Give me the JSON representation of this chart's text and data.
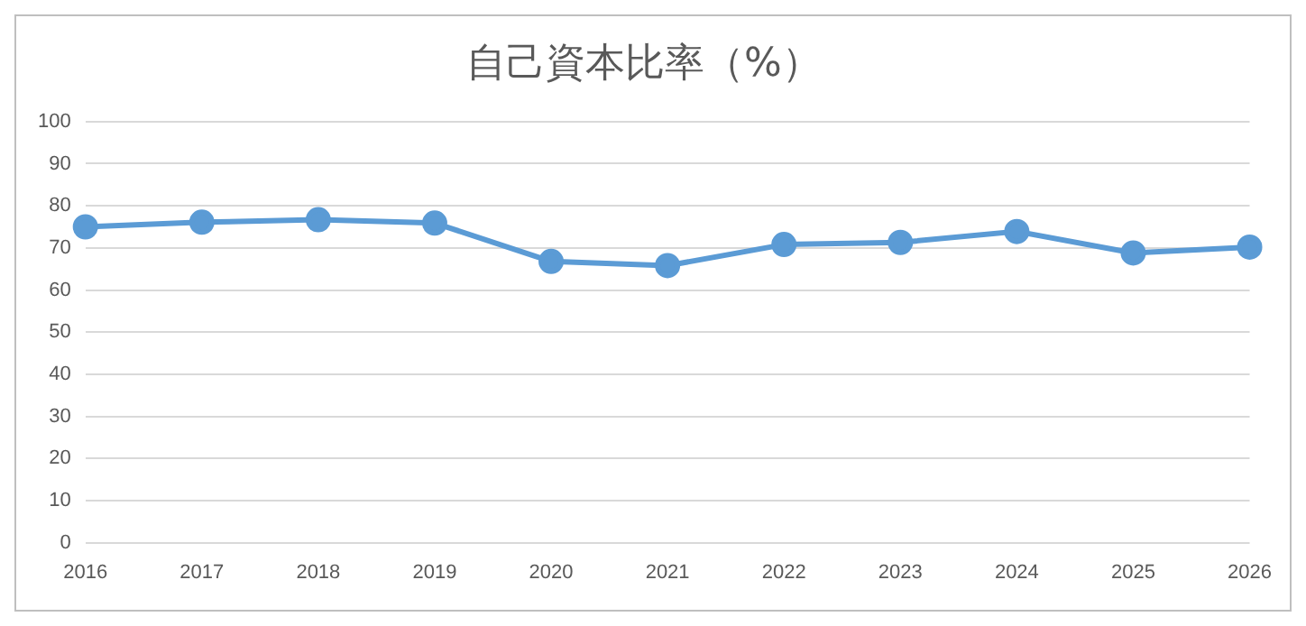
{
  "chart_data": {
    "type": "line",
    "title": "自己資本比率（%）",
    "categories": [
      "2016",
      "2017",
      "2018",
      "2019",
      "2020",
      "2021",
      "2022",
      "2023",
      "2024",
      "2025",
      "2026"
    ],
    "series": [
      {
        "color": "#5b9bd5",
        "values": [
          75.0,
          76.1,
          76.7,
          75.9,
          66.8,
          65.8,
          70.8,
          71.3,
          73.9,
          68.8,
          70.2
        ]
      }
    ],
    "ylim": [
      0,
      100
    ],
    "yticks": [
      0,
      10,
      20,
      30,
      40,
      50,
      60,
      70,
      80,
      90,
      100
    ],
    "grid": "y",
    "legend": false,
    "marker": "circle",
    "line_style": "solid"
  }
}
